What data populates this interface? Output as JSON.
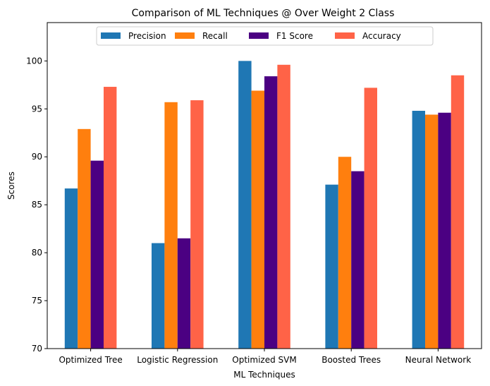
{
  "chart_data": {
    "type": "bar",
    "title": "Comparison of ML Techniques @ Over Weight 2 Class",
    "xlabel": "ML Techniques",
    "ylabel": "Scores",
    "ylim": [
      70,
      104
    ],
    "yticks": [
      70,
      75,
      80,
      85,
      90,
      95,
      100
    ],
    "grid": false,
    "legend_position": "top-center",
    "categories": [
      "Optimized Tree",
      "Logistic Regression",
      "Optimized SVM",
      "Boosted Trees",
      "Neural Network"
    ],
    "series": [
      {
        "name": "Precision",
        "color": "#1f77b4",
        "values": [
          86.7,
          81.0,
          100.0,
          87.1,
          94.8
        ]
      },
      {
        "name": "Recall",
        "color": "#ff7f0e",
        "values": [
          92.9,
          95.7,
          96.9,
          90.0,
          94.4
        ]
      },
      {
        "name": "F1 Score",
        "color": "#4b0082",
        "values": [
          89.6,
          81.5,
          98.4,
          88.5,
          94.6
        ]
      },
      {
        "name": "Accuracy",
        "color": "#ff6347",
        "values": [
          97.3,
          95.9,
          99.6,
          97.2,
          98.5
        ]
      }
    ]
  }
}
